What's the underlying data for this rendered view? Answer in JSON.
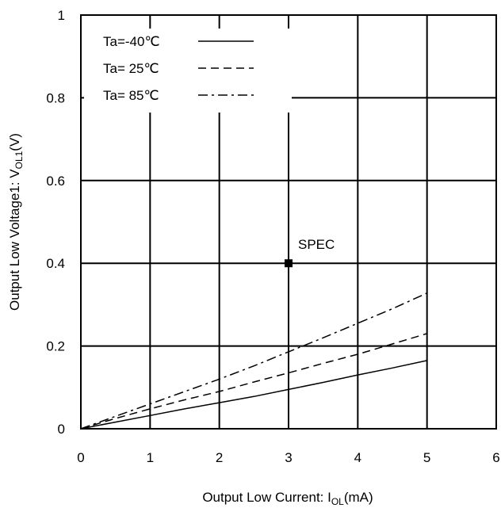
{
  "chart_data": {
    "type": "line",
    "xlabel": {
      "main": "Output Low Current: I",
      "sub": "OL",
      "unit": "(mA)"
    },
    "ylabel": {
      "main": "Output Low Voltage1: V",
      "sub": "OL1",
      "unit": "(V)"
    },
    "xlim": [
      0,
      6
    ],
    "ylim": [
      0,
      1
    ],
    "x_ticks": [
      0,
      1,
      2,
      3,
      4,
      5,
      6
    ],
    "x_tick_labels": [
      "0",
      "1",
      "2",
      "3",
      "4",
      "5",
      "6"
    ],
    "y_ticks": [
      0,
      0.2,
      0.4,
      0.6,
      0.8,
      1
    ],
    "y_tick_labels": [
      "0",
      "0.2",
      "0.4",
      "0.6",
      "0.8",
      "1"
    ],
    "grid": true,
    "legend_position": "top-left",
    "series": [
      {
        "name": "Ta=-40℃",
        "style": "solid",
        "x": [
          0,
          0.5,
          1,
          1.5,
          2,
          2.5,
          3,
          3.5,
          4,
          4.5,
          5
        ],
        "y": [
          0,
          0.016,
          0.032,
          0.048,
          0.063,
          0.078,
          0.095,
          0.112,
          0.13,
          0.147,
          0.165
        ]
      },
      {
        "name": "Ta= 25℃",
        "style": "dashed",
        "x": [
          0,
          0.5,
          1,
          1.5,
          2,
          2.5,
          3,
          3.5,
          4,
          4.5,
          5
        ],
        "y": [
          0,
          0.025,
          0.048,
          0.07,
          0.09,
          0.113,
          0.135,
          0.158,
          0.18,
          0.205,
          0.23
        ]
      },
      {
        "name": "Ta= 85℃",
        "style": "dashdot",
        "x": [
          0,
          0.5,
          1,
          1.5,
          2,
          2.5,
          3,
          3.5,
          4,
          4.5,
          5
        ],
        "y": [
          0,
          0.03,
          0.06,
          0.09,
          0.12,
          0.152,
          0.186,
          0.22,
          0.255,
          0.29,
          0.328
        ]
      }
    ],
    "annotations": [
      {
        "label": "SPEC",
        "x": 3,
        "y": 0.4,
        "marker": "square"
      }
    ]
  }
}
